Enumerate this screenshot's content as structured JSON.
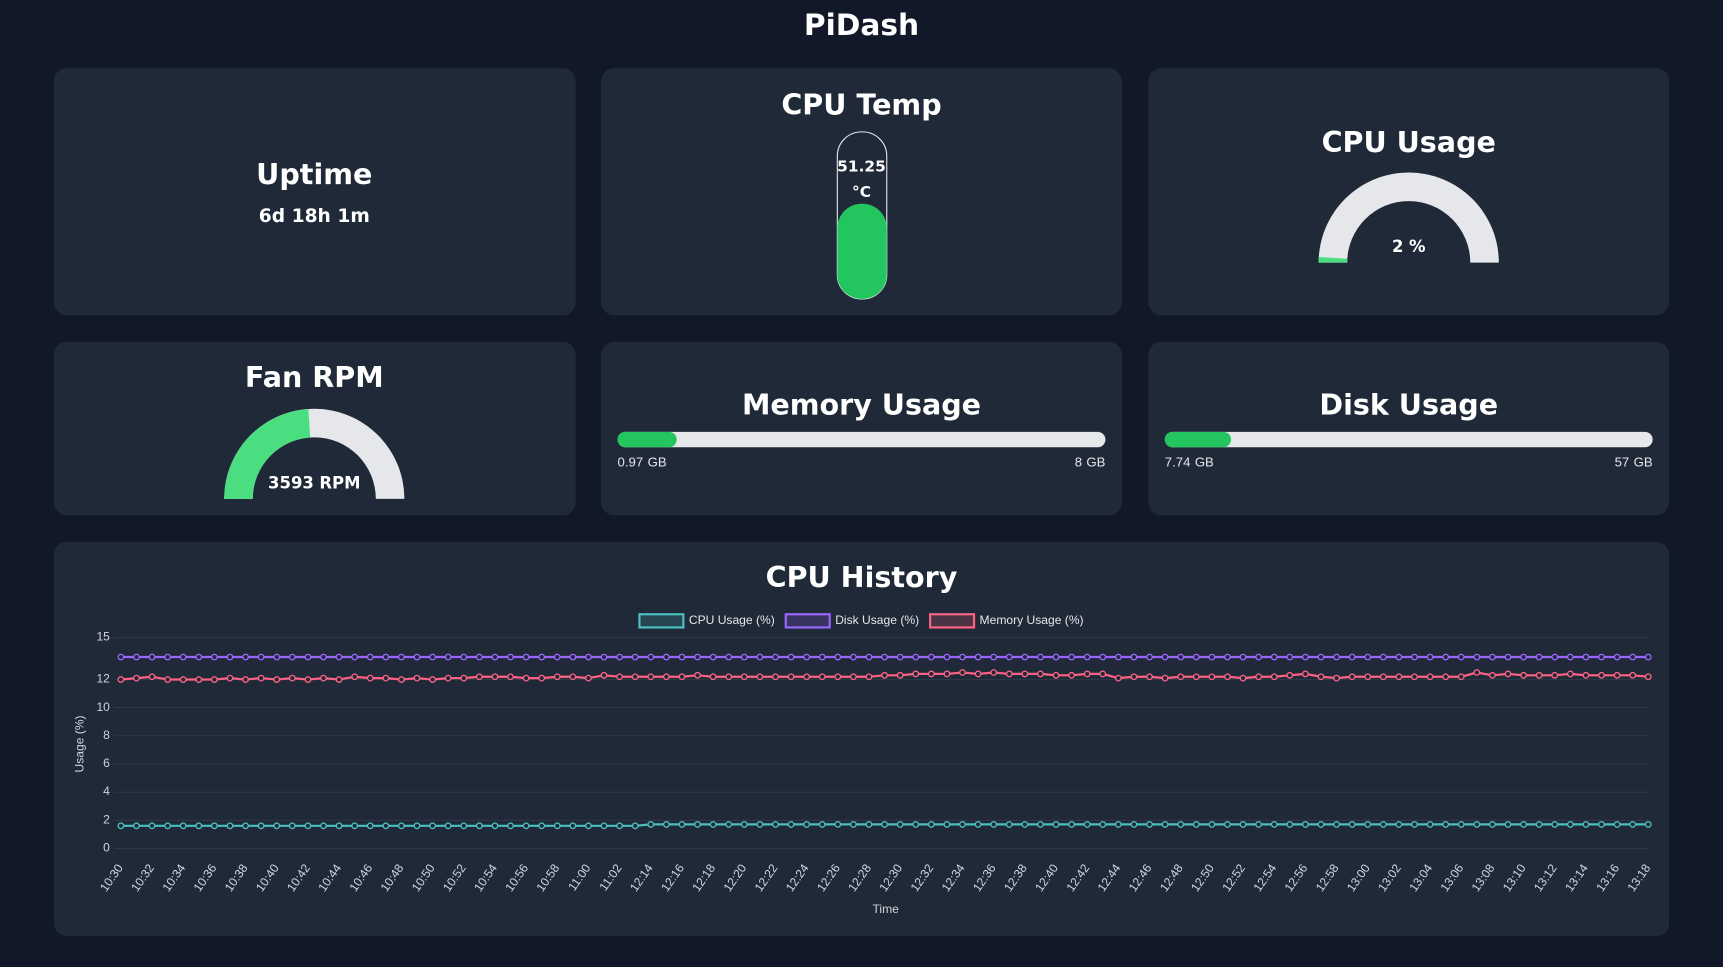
{
  "header": {
    "title": "PiDash"
  },
  "widgets": {
    "uptime": {
      "title": "Uptime",
      "value": "6d 18h 1m"
    },
    "cpu_temp": {
      "title": "CPU Temp",
      "value": 51.25,
      "unit": "°C",
      "max": 90
    },
    "cpu_usage": {
      "title": "CPU Usage",
      "value": 2,
      "unit": "%",
      "max": 100
    },
    "fan": {
      "title": "Fan RPM",
      "value": 3593,
      "unit": "RPM",
      "max": 7500
    },
    "memory": {
      "title": "Memory Usage",
      "used": 0.97,
      "total": 8,
      "unit": "GB"
    },
    "disk": {
      "title": "Disk Usage",
      "used": 7.74,
      "total": 57,
      "unit": "GB"
    }
  },
  "chart_data": {
    "type": "line",
    "title": "CPU History",
    "x_label": "Time",
    "y_label": "Usage (%)",
    "categories": [
      "10:30",
      null,
      "10:32",
      null,
      "10:34",
      null,
      "10:36",
      null,
      "10:38",
      null,
      "10:40",
      null,
      "10:42",
      null,
      "10:44",
      null,
      "10:46",
      null,
      "10:48",
      null,
      "10:50",
      null,
      "10:52",
      null,
      "10:54",
      null,
      "10:56",
      null,
      "10:58",
      null,
      "11:00",
      null,
      "11:02",
      null,
      "12:14",
      null,
      "12:16",
      null,
      "12:18",
      null,
      "12:20",
      null,
      "12:22",
      null,
      "12:24",
      null,
      "12:26",
      null,
      "12:28",
      null,
      "12:30",
      null,
      "12:32",
      null,
      "12:34",
      null,
      "12:36",
      null,
      "12:38",
      null,
      "12:40",
      null,
      "12:42",
      null,
      "12:44",
      null,
      "12:46",
      null,
      "12:48",
      null,
      "12:50",
      null,
      "12:52",
      null,
      "12:54",
      null,
      "12:56",
      null,
      "12:58",
      null,
      "13:00",
      null,
      "13:02",
      null,
      "13:04",
      null,
      "13:06",
      null,
      "13:08",
      null,
      "13:10",
      null,
      "13:12",
      null,
      "13:14",
      null,
      "13:16",
      null,
      "13:18"
    ],
    "series": [
      {
        "name": "CPU Usage (%)",
        "color": "#4bc0c0",
        "values": [
          1.6,
          1.6,
          1.6,
          1.6,
          1.6,
          1.6,
          1.6,
          1.6,
          1.6,
          1.6,
          1.6,
          1.6,
          1.6,
          1.6,
          1.6,
          1.6,
          1.6,
          1.6,
          1.6,
          1.6,
          1.6,
          1.6,
          1.6,
          1.6,
          1.6,
          1.6,
          1.6,
          1.6,
          1.6,
          1.6,
          1.6,
          1.6,
          1.6,
          1.6,
          1.7,
          1.7,
          1.7,
          1.7,
          1.7,
          1.7,
          1.7,
          1.7,
          1.7,
          1.7,
          1.7,
          1.7,
          1.7,
          1.7,
          1.7,
          1.7,
          1.7,
          1.7,
          1.7,
          1.7,
          1.7,
          1.7,
          1.7,
          1.7,
          1.7,
          1.7,
          1.7,
          1.7,
          1.7,
          1.7,
          1.7,
          1.7,
          1.7,
          1.7,
          1.7,
          1.7,
          1.7,
          1.7,
          1.7,
          1.7,
          1.7,
          1.7,
          1.7,
          1.7,
          1.7,
          1.7,
          1.7,
          1.7,
          1.7,
          1.7,
          1.7,
          1.7,
          1.7,
          1.7,
          1.7,
          1.7,
          1.7,
          1.7,
          1.7,
          1.7,
          1.7,
          1.7,
          1.7,
          1.7,
          1.7
        ]
      },
      {
        "name": "Disk Usage (%)",
        "color": "#9966ff",
        "values": [
          13.6,
          13.6,
          13.6,
          13.6,
          13.6,
          13.6,
          13.6,
          13.6,
          13.6,
          13.6,
          13.6,
          13.6,
          13.6,
          13.6,
          13.6,
          13.6,
          13.6,
          13.6,
          13.6,
          13.6,
          13.6,
          13.6,
          13.6,
          13.6,
          13.6,
          13.6,
          13.6,
          13.6,
          13.6,
          13.6,
          13.6,
          13.6,
          13.6,
          13.6,
          13.6,
          13.6,
          13.6,
          13.6,
          13.6,
          13.6,
          13.6,
          13.6,
          13.6,
          13.6,
          13.6,
          13.6,
          13.6,
          13.6,
          13.6,
          13.6,
          13.6,
          13.6,
          13.6,
          13.6,
          13.6,
          13.6,
          13.6,
          13.6,
          13.6,
          13.6,
          13.6,
          13.6,
          13.6,
          13.6,
          13.6,
          13.6,
          13.6,
          13.6,
          13.6,
          13.6,
          13.6,
          13.6,
          13.6,
          13.6,
          13.6,
          13.6,
          13.6,
          13.6,
          13.6,
          13.6,
          13.6,
          13.6,
          13.6,
          13.6,
          13.6,
          13.6,
          13.6,
          13.6,
          13.6,
          13.6,
          13.6,
          13.6,
          13.6,
          13.6,
          13.6,
          13.6,
          13.6,
          13.6,
          13.6
        ]
      },
      {
        "name": "Memory Usage (%)",
        "color": "#ff6384",
        "values": [
          12.0,
          12.1,
          12.2,
          12.0,
          12.0,
          12.0,
          12.0,
          12.1,
          12.0,
          12.1,
          12.0,
          12.1,
          12.0,
          12.1,
          12.0,
          12.2,
          12.1,
          12.1,
          12.0,
          12.1,
          12.0,
          12.1,
          12.1,
          12.2,
          12.2,
          12.2,
          12.1,
          12.1,
          12.2,
          12.2,
          12.1,
          12.3,
          12.2,
          12.2,
          12.2,
          12.2,
          12.2,
          12.3,
          12.2,
          12.2,
          12.2,
          12.2,
          12.2,
          12.2,
          12.2,
          12.2,
          12.2,
          12.2,
          12.2,
          12.3,
          12.3,
          12.4,
          12.4,
          12.4,
          12.5,
          12.4,
          12.5,
          12.4,
          12.4,
          12.4,
          12.3,
          12.3,
          12.4,
          12.4,
          12.1,
          12.2,
          12.2,
          12.1,
          12.2,
          12.2,
          12.2,
          12.2,
          12.1,
          12.2,
          12.2,
          12.3,
          12.4,
          12.2,
          12.1,
          12.2,
          12.2,
          12.2,
          12.2,
          12.2,
          12.2,
          12.2,
          12.2,
          12.5,
          12.3,
          12.4,
          12.3,
          12.3,
          12.3,
          12.4,
          12.3,
          12.3,
          12.3,
          12.3,
          12.2
        ]
      }
    ],
    "ylim": [
      0,
      15
    ],
    "yticks": [
      0,
      2,
      4,
      6,
      8,
      10,
      12,
      15
    ],
    "grid": true,
    "legend": "top"
  }
}
